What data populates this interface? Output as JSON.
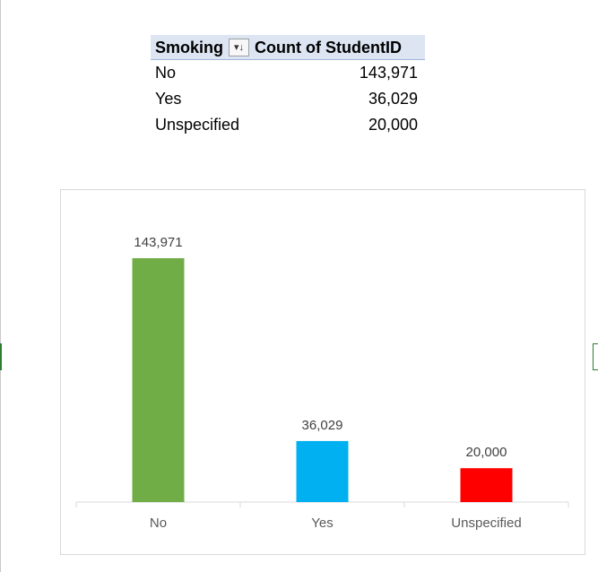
{
  "pivot": {
    "header_field": "Smoking",
    "header_value": "Count of StudentID",
    "sort_icon": "sort-descending-icon",
    "rows": [
      {
        "label": "No",
        "value": "143,971"
      },
      {
        "label": "Yes",
        "value": "36,029"
      },
      {
        "label": "Unspecified",
        "value": "20,000"
      }
    ]
  },
  "chart_data": {
    "type": "bar",
    "categories": [
      "No",
      "Yes",
      "Unspecified"
    ],
    "values": [
      143971,
      36029,
      20000
    ],
    "data_labels": [
      "143,971",
      "36,029",
      "20,000"
    ],
    "colors": [
      "#70ad47",
      "#00b0f0",
      "#ff0000"
    ],
    "title": "",
    "xlabel": "",
    "ylabel": "",
    "grid": false,
    "legend": "none"
  }
}
